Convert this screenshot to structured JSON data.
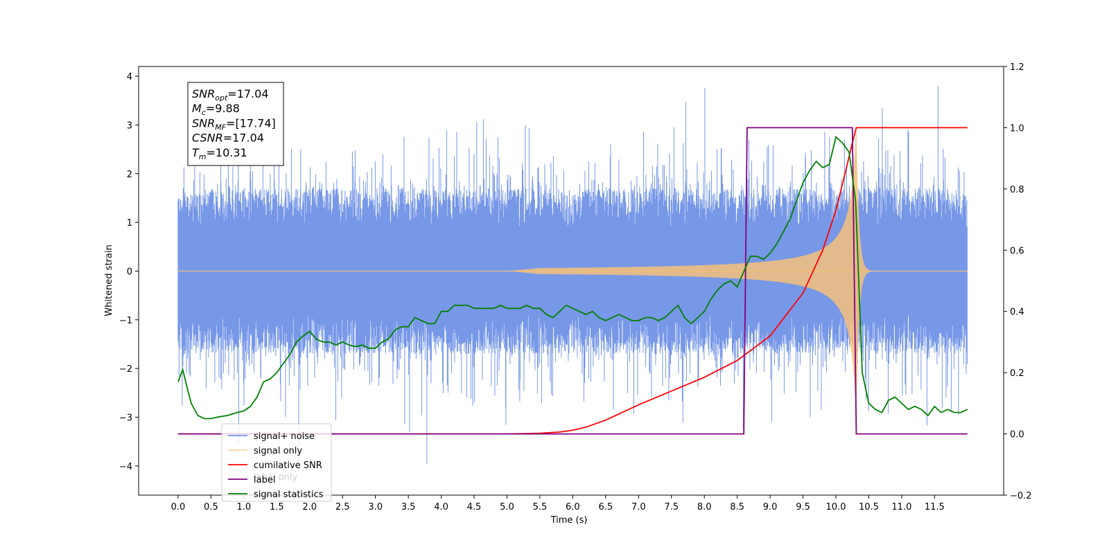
{
  "chart_data": {
    "type": "line",
    "title": "",
    "xlabel": "Time (s)",
    "ylabel": "Whitened strain",
    "xlim": [
      -0.6,
      12.55
    ],
    "ylim": [
      -4.6,
      4.2
    ],
    "y2lim": [
      -0.2,
      1.2
    ],
    "x_ticks": [
      "0.0",
      "0.5",
      "1.0",
      "1.5",
      "2.0",
      "2.5",
      "3.0",
      "3.5",
      "4.0",
      "4.5",
      "5.0",
      "5.5",
      "6.0",
      "6.5",
      "7.0",
      "7.5",
      "8.0",
      "8.5",
      "9.0",
      "9.5",
      "10.0",
      "10.5",
      "11.0",
      "11.5"
    ],
    "y_ticks": [
      "4",
      "3",
      "2",
      "1",
      "0",
      "-1",
      "-2",
      "-3",
      "-4"
    ],
    "y2_ticks": [
      "1.2",
      "1.0",
      "0.8",
      "0.6",
      "0.4",
      "0.2",
      "0.0",
      "-0.2"
    ],
    "grid": false,
    "legend_position": "lower-left",
    "info_box": {
      "lines": [
        {
          "sym": "SNR",
          "sub": "opt",
          "value": "=17.04"
        },
        {
          "sym": "M",
          "sub": "c",
          "value": "=9.88"
        },
        {
          "sym": "SNR",
          "sub": "MF",
          "value": "=[17.74]"
        },
        {
          "sym": "CSNR",
          "sub": "",
          "value": "=17.04"
        },
        {
          "sym": "T",
          "sub": "m",
          "value": "=10.31"
        }
      ]
    },
    "legend_overlap_text": "label only",
    "series": [
      {
        "name": "signal+ noise",
        "color": "#7091e6",
        "axis": "left",
        "description": "whitened noise, roughly uniform amplitude about ±2.5 with spikes up to ±4"
      },
      {
        "name": "signal only",
        "color": "#f5c07a",
        "axis": "left",
        "description": "chirp waveform growing from 0 near t=6 to ±3 peak at t=10.3, then ringdown"
      },
      {
        "name": "cumilative SNR",
        "color": "#ff0000",
        "axis": "right",
        "x": [
          0.0,
          5.0,
          5.5,
          5.8,
          6.0,
          6.2,
          6.5,
          7.0,
          7.5,
          8.0,
          8.5,
          9.0,
          9.5,
          9.8,
          10.0,
          10.15,
          10.25,
          10.31,
          12.0
        ],
        "values": [
          0.0,
          0.0,
          0.002,
          0.006,
          0.012,
          0.022,
          0.045,
          0.095,
          0.14,
          0.185,
          0.24,
          0.32,
          0.46,
          0.6,
          0.73,
          0.86,
          0.95,
          1.0,
          1.0
        ]
      },
      {
        "name": "label",
        "color": "#800080",
        "axis": "right",
        "x": [
          0.0,
          8.6,
          8.65,
          10.25,
          10.31,
          12.0
        ],
        "values": [
          0.0,
          0.0,
          1.0,
          1.0,
          0.0,
          0.0
        ]
      },
      {
        "name": "signal statistics",
        "color": "#008000",
        "axis": "right",
        "x": [
          0.0,
          0.07,
          0.15,
          0.2,
          0.3,
          0.4,
          0.5,
          0.6,
          0.75,
          0.9,
          1.0,
          1.1,
          1.2,
          1.3,
          1.4,
          1.5,
          1.6,
          1.7,
          1.8,
          1.9,
          2.0,
          2.1,
          2.2,
          2.3,
          2.4,
          2.5,
          2.6,
          2.7,
          2.8,
          2.9,
          3.0,
          3.1,
          3.2,
          3.3,
          3.4,
          3.5,
          3.6,
          3.7,
          3.8,
          3.9,
          4.0,
          4.1,
          4.2,
          4.3,
          4.4,
          4.5,
          4.6,
          4.7,
          4.8,
          4.9,
          5.0,
          5.1,
          5.2,
          5.3,
          5.4,
          5.5,
          5.6,
          5.7,
          5.8,
          5.9,
          6.0,
          6.1,
          6.2,
          6.3,
          6.4,
          6.5,
          6.6,
          6.7,
          6.8,
          6.9,
          7.0,
          7.1,
          7.2,
          7.3,
          7.4,
          7.5,
          7.6,
          7.7,
          7.8,
          7.9,
          8.0,
          8.1,
          8.2,
          8.3,
          8.4,
          8.5,
          8.6,
          8.7,
          8.8,
          8.9,
          9.0,
          9.1,
          9.2,
          9.3,
          9.4,
          9.5,
          9.6,
          9.7,
          9.8,
          9.9,
          10.0,
          10.1,
          10.2,
          10.3,
          10.4,
          10.5,
          10.6,
          10.7,
          10.8,
          10.9,
          11.0,
          11.1,
          11.2,
          11.3,
          11.4,
          11.5,
          11.6,
          11.7,
          11.8,
          11.9,
          12.0
        ],
        "values": [
          0.17,
          0.21,
          0.14,
          0.1,
          0.06,
          0.05,
          0.05,
          0.055,
          0.06,
          0.07,
          0.075,
          0.09,
          0.12,
          0.17,
          0.18,
          0.2,
          0.23,
          0.26,
          0.3,
          0.32,
          0.335,
          0.31,
          0.3,
          0.3,
          0.29,
          0.3,
          0.29,
          0.285,
          0.29,
          0.28,
          0.28,
          0.3,
          0.31,
          0.34,
          0.35,
          0.35,
          0.38,
          0.37,
          0.36,
          0.36,
          0.4,
          0.4,
          0.42,
          0.42,
          0.42,
          0.41,
          0.41,
          0.41,
          0.41,
          0.42,
          0.41,
          0.41,
          0.41,
          0.42,
          0.41,
          0.41,
          0.39,
          0.38,
          0.4,
          0.42,
          0.41,
          0.4,
          0.39,
          0.4,
          0.38,
          0.37,
          0.38,
          0.39,
          0.38,
          0.37,
          0.37,
          0.38,
          0.38,
          0.37,
          0.38,
          0.4,
          0.42,
          0.38,
          0.36,
          0.38,
          0.4,
          0.44,
          0.47,
          0.49,
          0.5,
          0.48,
          0.53,
          0.58,
          0.58,
          0.57,
          0.59,
          0.62,
          0.66,
          0.7,
          0.76,
          0.82,
          0.86,
          0.89,
          0.87,
          0.88,
          0.97,
          0.95,
          0.92,
          0.76,
          0.2,
          0.1,
          0.08,
          0.07,
          0.11,
          0.12,
          0.1,
          0.08,
          0.09,
          0.08,
          0.06,
          0.09,
          0.07,
          0.08,
          0.07,
          0.07,
          0.08
        ]
      }
    ]
  }
}
